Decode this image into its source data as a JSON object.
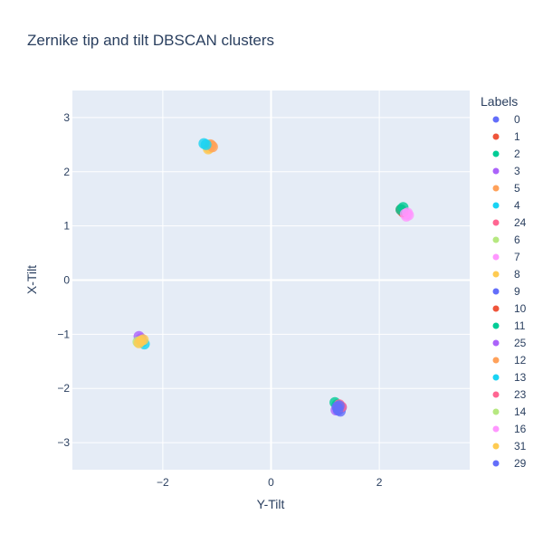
{
  "chart_data": {
    "type": "scatter",
    "title": "Zernike tip and tilt DBSCAN clusters",
    "xlabel": "Y-Tilt",
    "ylabel": "X-Tilt",
    "xlim": [
      -3.67,
      3.67
    ],
    "ylim": [
      -3.5,
      3.5
    ],
    "xticks": [
      -2,
      0,
      2
    ],
    "xtick_labels": [
      "−2",
      "0",
      "2"
    ],
    "yticks": [
      -3,
      -2,
      -1,
      0,
      1,
      2,
      3
    ],
    "ytick_labels": [
      "−3",
      "−2",
      "−1",
      "0",
      "1",
      "2",
      "3"
    ],
    "grid": true,
    "plot_bgcolor": "#E5ECF6",
    "legend": {
      "title": "Labels",
      "placement": "right",
      "entries": [
        {
          "label": "0",
          "color": "#636efa"
        },
        {
          "label": "1",
          "color": "#EF553B"
        },
        {
          "label": "2",
          "color": "#00cc96"
        },
        {
          "label": "3",
          "color": "#ab63fa"
        },
        {
          "label": "5",
          "color": "#FFA15A"
        },
        {
          "label": "4",
          "color": "#19d3f3"
        },
        {
          "label": "24",
          "color": "#FF6692"
        },
        {
          "label": "6",
          "color": "#B6E880"
        },
        {
          "label": "7",
          "color": "#FF97FF"
        },
        {
          "label": "8",
          "color": "#FECB52"
        },
        {
          "label": "9",
          "color": "#636efa"
        },
        {
          "label": "10",
          "color": "#EF553B"
        },
        {
          "label": "11",
          "color": "#00cc96"
        },
        {
          "label": "25",
          "color": "#ab63fa"
        },
        {
          "label": "12",
          "color": "#FFA15A"
        },
        {
          "label": "13",
          "color": "#19d3f3"
        },
        {
          "label": "23",
          "color": "#FF6692"
        },
        {
          "label": "14",
          "color": "#B6E880"
        },
        {
          "label": "16",
          "color": "#FF97FF"
        },
        {
          "label": "31",
          "color": "#FECB52"
        },
        {
          "label": "29",
          "color": "#636efa"
        }
      ]
    },
    "series": [
      {
        "name": "0",
        "x": [
          1.22,
          1.26,
          1.3
        ],
        "y": [
          -2.32,
          -2.38,
          -2.35
        ]
      },
      {
        "name": "1",
        "x": [
          2.42,
          2.46
        ],
        "y": [
          1.28,
          1.24
        ]
      },
      {
        "name": "2",
        "x": [
          1.18,
          1.22
        ],
        "y": [
          -2.26,
          -2.3
        ]
      },
      {
        "name": "3",
        "x": [
          1.2,
          1.24
        ],
        "y": [
          -2.4,
          -2.36
        ]
      },
      {
        "name": "5",
        "x": [
          -1.14,
          -1.1
        ],
        "y": [
          2.44,
          2.48
        ]
      },
      {
        "name": "4",
        "x": [
          -2.38,
          -2.34
        ],
        "y": [
          -1.14,
          -1.18
        ]
      },
      {
        "name": "24",
        "x": [
          2.5,
          2.46
        ],
        "y": [
          1.22,
          1.26
        ]
      },
      {
        "name": "6",
        "x": [
          -2.42
        ],
        "y": [
          -1.1
        ]
      },
      {
        "name": "7",
        "x": [
          2.54,
          2.5
        ],
        "y": [
          1.2,
          1.18
        ]
      },
      {
        "name": "8",
        "x": [
          -1.16,
          -1.12
        ],
        "y": [
          2.42,
          2.46
        ]
      },
      {
        "name": "9",
        "x": [
          1.28,
          1.24
        ],
        "y": [
          -2.42,
          -2.4
        ]
      },
      {
        "name": "10",
        "x": [
          2.4,
          2.44
        ],
        "y": [
          1.3,
          1.26
        ]
      },
      {
        "name": "11",
        "x": [
          2.44,
          2.4
        ],
        "y": [
          1.34,
          1.3
        ]
      },
      {
        "name": "25",
        "x": [
          -2.44,
          -2.4
        ],
        "y": [
          -1.04,
          -1.08
        ]
      },
      {
        "name": "12",
        "x": [
          -1.12,
          -1.08
        ],
        "y": [
          2.5,
          2.46
        ]
      },
      {
        "name": "13",
        "x": [
          -1.24,
          -1.2
        ],
        "y": [
          2.52,
          2.5
        ]
      },
      {
        "name": "23",
        "x": [
          1.26,
          1.3
        ],
        "y": [
          -2.3,
          -2.34
        ]
      },
      {
        "name": "14",
        "x": [
          -2.46
        ],
        "y": [
          -1.14
        ]
      },
      {
        "name": "16",
        "x": [
          2.52,
          2.48
        ],
        "y": [
          1.24,
          1.22
        ]
      },
      {
        "name": "31",
        "x": [
          -2.4,
          -2.36,
          -2.44
        ],
        "y": [
          -1.12,
          -1.1,
          -1.16
        ]
      },
      {
        "name": "29",
        "x": [
          1.22,
          1.26,
          1.24
        ],
        "y": [
          -2.34,
          -2.32,
          -2.38
        ]
      }
    ]
  }
}
